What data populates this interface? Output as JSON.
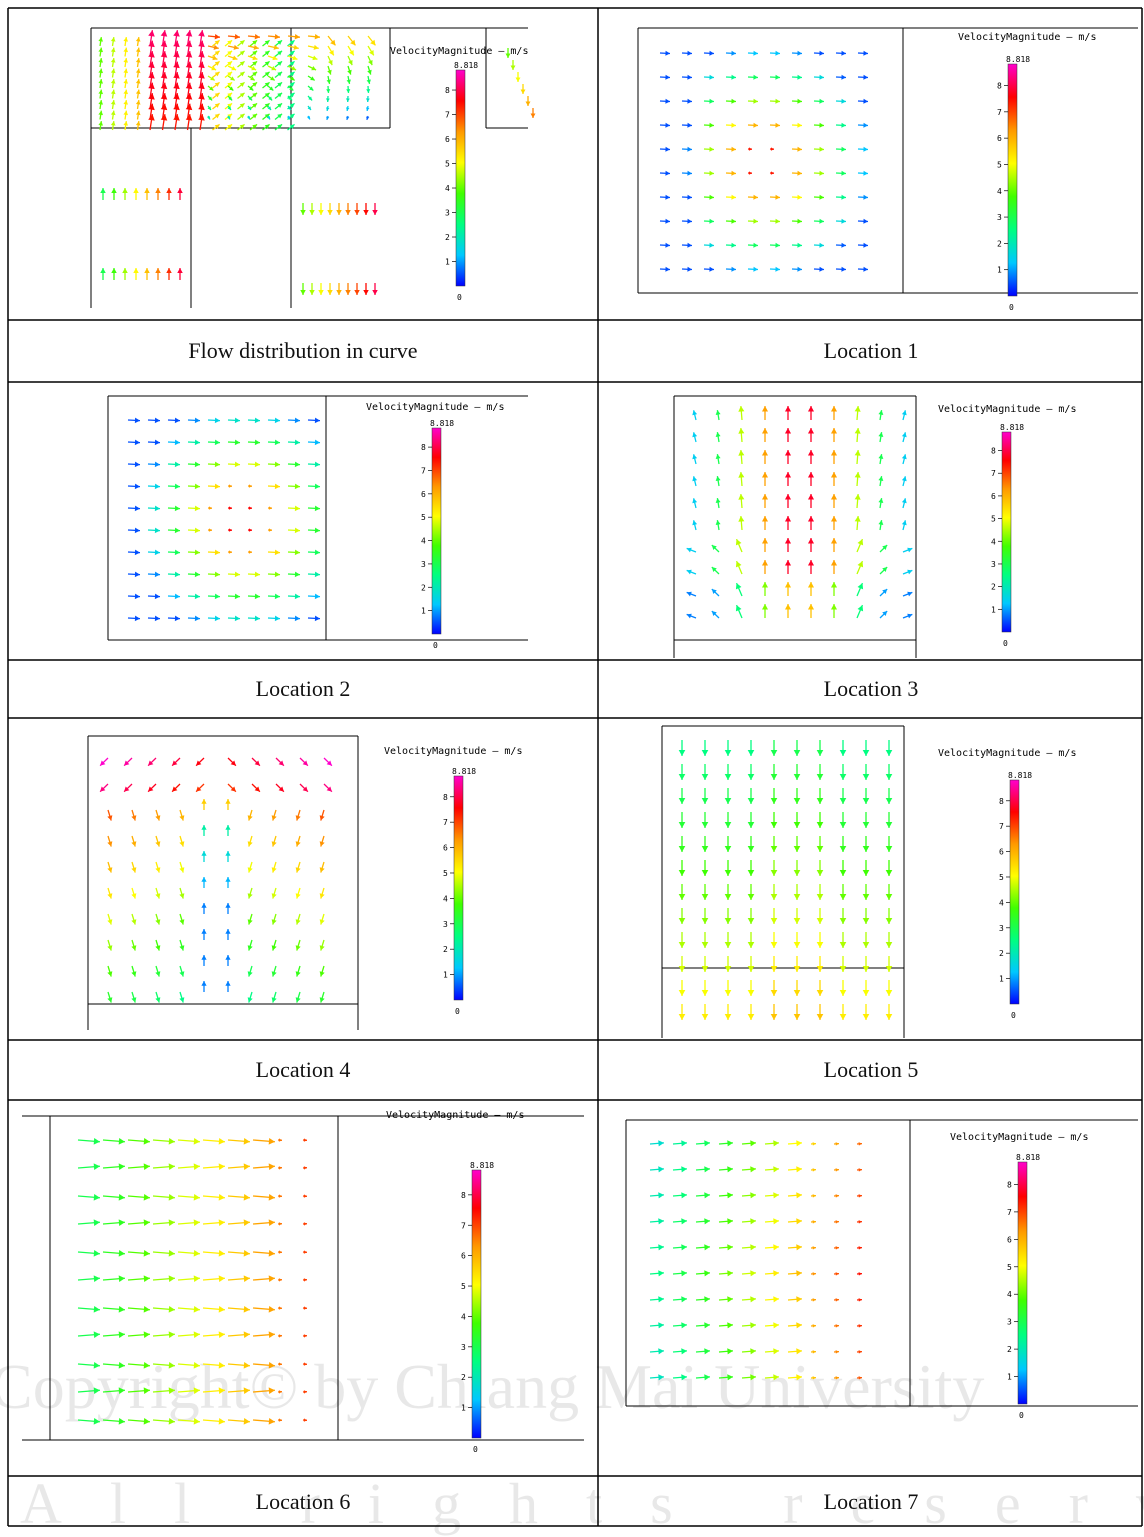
{
  "captions": [
    "Flow distribution in curve",
    "Location 1",
    "Location 2",
    "Location 3",
    "Location 4",
    "Location 5",
    "Location 6",
    "Location 7"
  ],
  "legend": {
    "title": "VelocityMagnitude  –  m/s",
    "max_label": "8.818",
    "min_label": "0",
    "ticks": [
      "1",
      "2",
      "3",
      "4",
      "5",
      "6",
      "7",
      "8"
    ],
    "max_value": 8.818,
    "colors": [
      "#0000ff",
      "#00c8ff",
      "#00ff80",
      "#40ff00",
      "#ffff00",
      "#ff9900",
      "#ff0000",
      "#ff00cc"
    ]
  },
  "watermark": {
    "line1": "Copyright© by Chiang Mai University",
    "line2": "All rights reserved"
  }
}
